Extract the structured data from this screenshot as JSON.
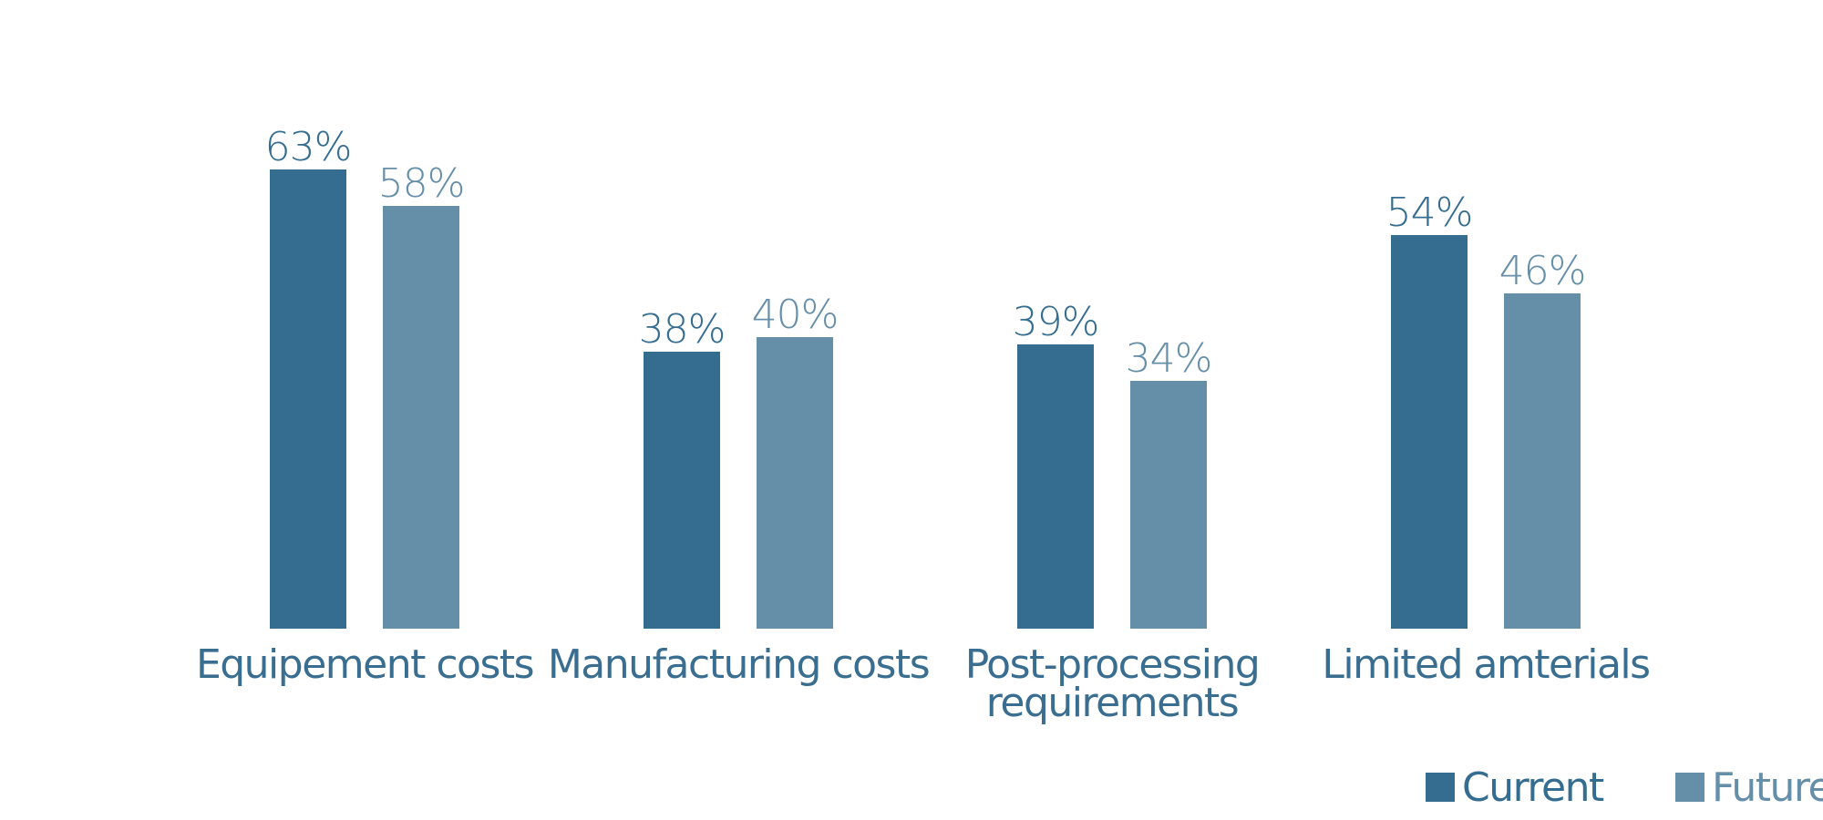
{
  "chart_data": {
    "type": "bar",
    "categories": [
      [
        "Equipement costs"
      ],
      [
        "Manufacturing costs"
      ],
      [
        "Post-processing",
        "requirements"
      ],
      [
        "Limited amterials"
      ]
    ],
    "series": [
      {
        "name": "Current",
        "values": [
          63,
          38,
          39,
          54
        ],
        "labels": [
          "63%",
          "38%",
          "39%",
          "54%"
        ],
        "color": "#346d8f"
      },
      {
        "name": "Future",
        "values": [
          58,
          40,
          34,
          46
        ],
        "labels": [
          "58%",
          "40%",
          "34%",
          "46%"
        ],
        "color": "#658ea9"
      }
    ],
    "ylim": [
      0,
      70
    ],
    "grid": false,
    "legend": "bottom-right",
    "title": "",
    "xlabel": "",
    "ylabel": ""
  }
}
